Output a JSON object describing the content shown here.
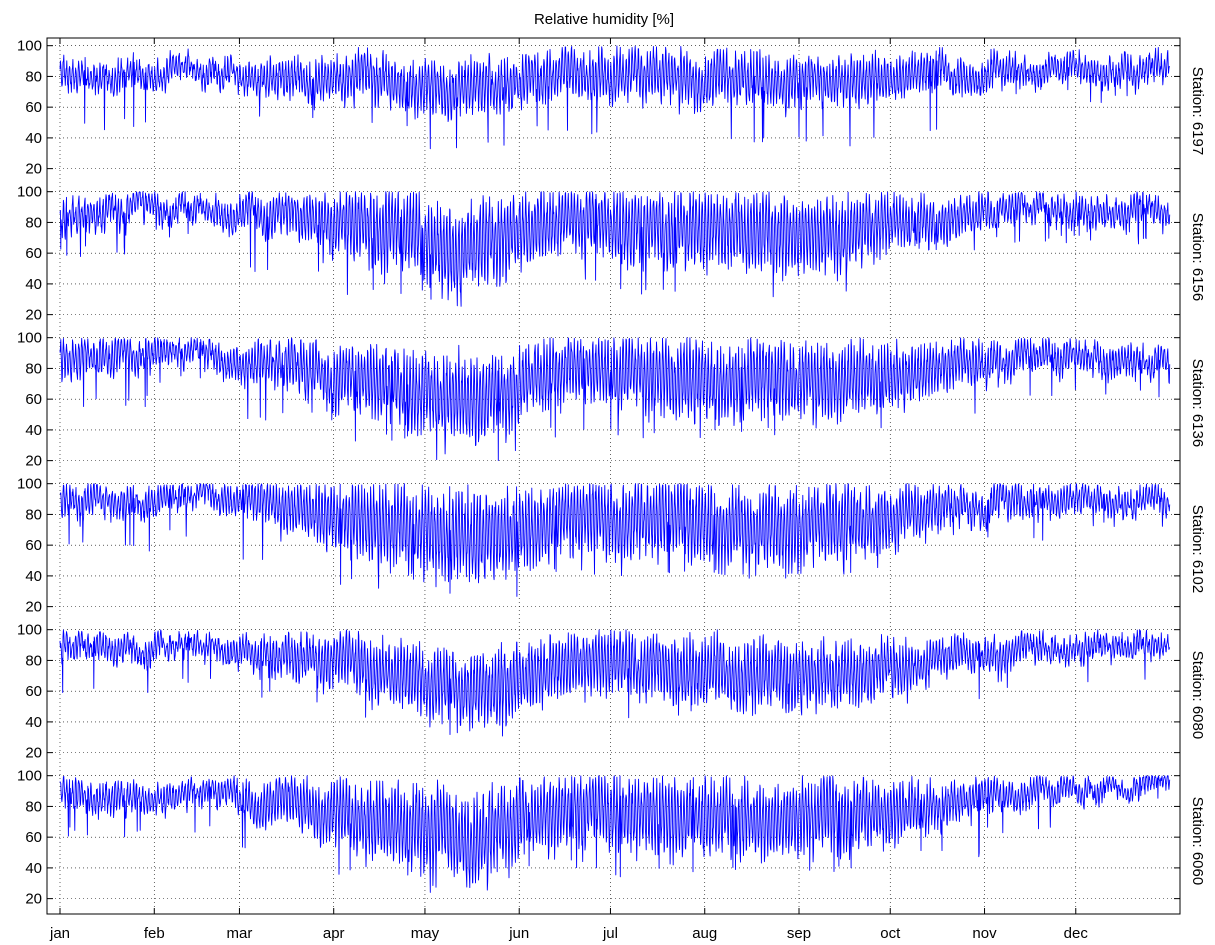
{
  "chart_data": {
    "type": "line",
    "title": "Relative humidity [%]",
    "xlabel": "",
    "ylabel": "",
    "grid": true,
    "line_color": "#0000ff",
    "months": [
      "jan",
      "feb",
      "mar",
      "apr",
      "may",
      "jun",
      "jul",
      "aug",
      "sep",
      "oct",
      "nov",
      "dec"
    ],
    "month_start_day": [
      1,
      32,
      60,
      91,
      121,
      152,
      182,
      213,
      244,
      274,
      305,
      335
    ],
    "x_range_days": [
      1,
      365
    ],
    "y_ticks": [
      20,
      40,
      60,
      80,
      100
    ],
    "panel_ylim": [
      10,
      105
    ],
    "series": [
      {
        "name": "Station: 6197",
        "seed": 11,
        "monthly_mean": [
          80,
          84,
          80,
          79,
          72,
          82,
          79,
          78,
          78,
          80,
          85,
          86
        ],
        "monthly_diurnal_amplitude": [
          8,
          6,
          10,
          13,
          14,
          12,
          14,
          14,
          13,
          10,
          7,
          7
        ],
        "monthly_min_approx": [
          45,
          68,
          52,
          46,
          32,
          42,
          40,
          34,
          34,
          40,
          66,
          62
        ]
      },
      {
        "name": "Station: 6156",
        "seed": 23,
        "monthly_mean": [
          86,
          90,
          84,
          75,
          62,
          80,
          76,
          74,
          74,
          82,
          88,
          88
        ],
        "monthly_diurnal_amplitude": [
          9,
          6,
          12,
          20,
          24,
          17,
          20,
          21,
          20,
          12,
          7,
          8
        ],
        "monthly_min_approx": [
          57,
          70,
          48,
          33,
          22,
          38,
          33,
          30,
          30,
          62,
          65,
          64
        ]
      },
      {
        "name": "Station: 6136",
        "seed": 37,
        "monthly_mean": [
          86,
          89,
          82,
          72,
          58,
          80,
          72,
          70,
          72,
          80,
          86,
          86
        ],
        "monthly_diurnal_amplitude": [
          10,
          6,
          13,
          20,
          23,
          17,
          21,
          21,
          20,
          13,
          8,
          8
        ],
        "monthly_min_approx": [
          55,
          70,
          45,
          32,
          20,
          35,
          33,
          35,
          35,
          45,
          60,
          60
        ]
      },
      {
        "name": "Station: 6102",
        "seed": 49,
        "monthly_mean": [
          88,
          92,
          85,
          74,
          62,
          78,
          74,
          72,
          74,
          82,
          88,
          90
        ],
        "monthly_diurnal_amplitude": [
          9,
          6,
          13,
          22,
          25,
          19,
          22,
          22,
          21,
          12,
          8,
          7
        ],
        "monthly_min_approx": [
          55,
          62,
          50,
          32,
          24,
          40,
          36,
          38,
          38,
          48,
          62,
          70
        ]
      },
      {
        "name": "Station: 6080",
        "seed": 61,
        "monthly_mean": [
          86,
          90,
          84,
          74,
          58,
          78,
          74,
          72,
          72,
          80,
          86,
          88
        ],
        "monthly_diurnal_amplitude": [
          7,
          5,
          11,
          17,
          21,
          16,
          18,
          18,
          17,
          10,
          7,
          6
        ],
        "monthly_min_approx": [
          58,
          65,
          52,
          38,
          24,
          45,
          40,
          44,
          44,
          52,
          60,
          65
        ]
      },
      {
        "name": "Station: 6060",
        "seed": 73,
        "monthly_mean": [
          86,
          88,
          82,
          72,
          60,
          78,
          72,
          74,
          74,
          80,
          88,
          92
        ],
        "monthly_diurnal_amplitude": [
          8,
          6,
          13,
          21,
          25,
          18,
          22,
          20,
          20,
          12,
          7,
          5
        ],
        "monthly_min_approx": [
          60,
          60,
          52,
          35,
          22,
          40,
          34,
          34,
          34,
          45,
          62,
          80
        ]
      }
    ]
  }
}
